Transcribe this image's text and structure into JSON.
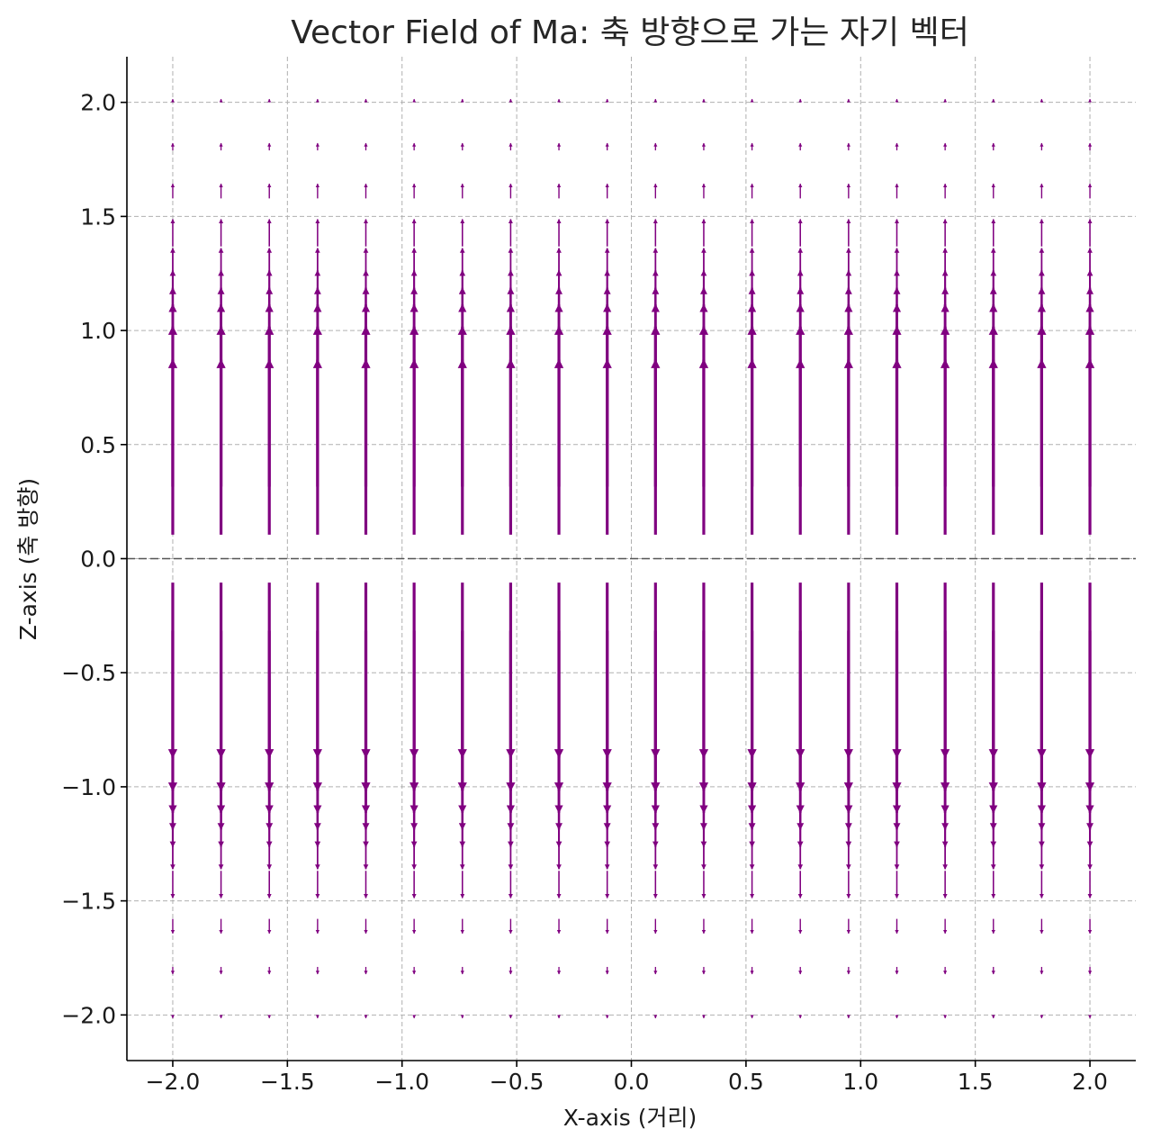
{
  "chart_data": {
    "type": "quiver",
    "title": "Vector Field of Ma: 축 방향으로 가는 자기 벡터",
    "xlabel": "X-axis (거리)",
    "ylabel": "Z-axis (축 방향)",
    "xlim": [
      -2.2,
      2.2
    ],
    "ylim": [
      -2.2,
      2.2
    ],
    "xticks": [
      -2.0,
      -1.5,
      -1.0,
      -0.5,
      0.0,
      0.5,
      1.0,
      1.5,
      2.0
    ],
    "yticks": [
      -2.0,
      -1.5,
      -1.0,
      -0.5,
      0.0,
      0.5,
      1.0,
      1.5,
      2.0
    ],
    "xtick_labels": [
      "−2.0",
      "−1.5",
      "−1.0",
      "−0.5",
      "0.0",
      "0.5",
      "1.0",
      "1.5",
      "2.0"
    ],
    "ytick_labels": [
      "−2.0",
      "−1.5",
      "−1.0",
      "−0.5",
      "0.0",
      "0.5",
      "1.0",
      "1.5",
      "2.0"
    ],
    "grid": true,
    "reference_line": {
      "y": 0.0,
      "style": "dashed",
      "color": "#555555"
    },
    "arrow_color": "#800080",
    "grid_points": {
      "x_start": -2.0,
      "x_end": 2.0,
      "x_count": 20,
      "y_start": -2.0,
      "y_end": 2.0,
      "y_count": 20
    },
    "vector_field": {
      "u": 0,
      "v": "sign(z)·exp(-z²)",
      "note_from_figure": "arrows point away from z=0, longest near |z|≈0.1-0.6, vanishing beyond |z|≈1.5"
    }
  }
}
